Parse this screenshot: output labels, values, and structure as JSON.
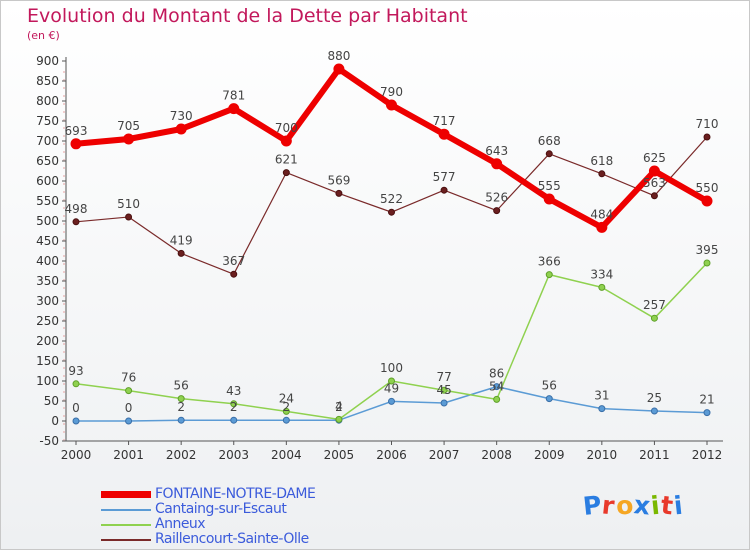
{
  "title": "Evolution du Montant de la Dette par Habitant",
  "subtitle": "(en €)",
  "logo": {
    "text": "Proxiti",
    "colors": [
      "#2a7de1",
      "#e8392b",
      "#f5a623",
      "#2a7de1",
      "#7ab800",
      "#e8392b",
      "#2a7de1"
    ]
  },
  "chart_data": {
    "type": "line",
    "title": "Evolution du Montant de la Dette par Habitant",
    "ylabel": "(en €)",
    "xlabel": "",
    "x": [
      "2000",
      "2001",
      "2002",
      "2003",
      "2004",
      "2005",
      "2006",
      "2007",
      "2008",
      "2009",
      "2010",
      "2011",
      "2012"
    ],
    "ylim": [
      -50,
      900
    ],
    "yticks": [
      -50,
      0,
      50,
      100,
      150,
      200,
      250,
      300,
      350,
      400,
      450,
      500,
      550,
      600,
      650,
      700,
      750,
      800,
      850,
      900
    ],
    "grid": false,
    "legend_position": "bottom",
    "series": [
      {
        "name": "FONTAINE-NOTRE-DAME",
        "color": "#ee0000",
        "values": [
          693,
          705,
          730,
          781,
          700,
          880,
          790,
          717,
          643,
          555,
          484,
          625,
          550
        ]
      },
      {
        "name": "Cantaing-sur-Escaut",
        "color": "#5b9bd5",
        "values": [
          0,
          0,
          2,
          2,
          2,
          2,
          49,
          45,
          86,
          56,
          31,
          25,
          21
        ]
      },
      {
        "name": "Anneux",
        "color": "#8fd14f",
        "values": [
          93,
          76,
          56,
          43,
          24,
          4,
          100,
          77,
          54,
          366,
          334,
          257,
          395
        ]
      },
      {
        "name": "Raillencourt-Sainte-Olle",
        "color": "#7a2a2a",
        "values": [
          498,
          510,
          419,
          367,
          621,
          569,
          522,
          577,
          526,
          668,
          618,
          563,
          710
        ]
      }
    ]
  }
}
